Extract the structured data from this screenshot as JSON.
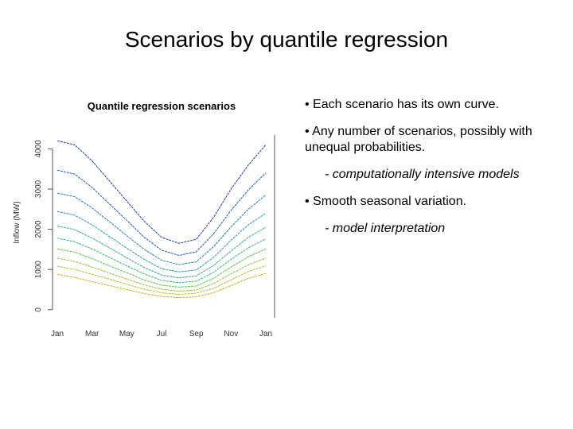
{
  "title": "Scenarios by quantile regression",
  "bullets": [
    {
      "text": "Each scenario has its own curve."
    },
    {
      "text": "Any number of scenarios, possibly with unequal probabilities.",
      "sub": "- computationally  intensive models"
    },
    {
      "text": "Smooth seasonal variation.",
      "sub": "- model interpretation"
    }
  ],
  "chart_data": {
    "type": "line",
    "title": "Quantile regression scenarios",
    "y_label": "Inflow (MW)",
    "categories": [
      "Jan",
      null,
      "Mar",
      null,
      "May",
      null,
      "Jul",
      null,
      "Sep",
      null,
      "Nov",
      null,
      "Jan"
    ],
    "ylim": [
      -300,
      4500
    ],
    "yticks": [
      0,
      1000,
      2000,
      3000,
      4000
    ],
    "grid": false,
    "series": [
      {
        "color": "#1f3a9c",
        "values": [
          4200,
          4100,
          3700,
          3200,
          2700,
          2200,
          1800,
          1650,
          1750,
          2300,
          3000,
          3600,
          4100
        ]
      },
      {
        "color": "#2657ad",
        "values": [
          3470,
          3370,
          3040,
          2630,
          2220,
          1800,
          1480,
          1350,
          1440,
          1890,
          2470,
          2980,
          3400
        ]
      },
      {
        "color": "#2c78b6",
        "values": [
          2900,
          2810,
          2530,
          2190,
          1840,
          1500,
          1230,
          1120,
          1190,
          1570,
          2060,
          2500,
          2850
        ]
      },
      {
        "color": "#2e95ac",
        "values": [
          2440,
          2350,
          2110,
          1820,
          1530,
          1250,
          1020,
          940,
          990,
          1300,
          1730,
          2110,
          2400
        ]
      },
      {
        "color": "#2fab8e",
        "values": [
          2080,
          1990,
          1780,
          1540,
          1290,
          1050,
          860,
          790,
          840,
          1100,
          1460,
          1800,
          2050
        ]
      },
      {
        "color": "#38b76e",
        "values": [
          1780,
          1690,
          1510,
          1300,
          1090,
          890,
          730,
          670,
          710,
          930,
          1250,
          1540,
          1760
        ]
      },
      {
        "color": "#5abe4c",
        "values": [
          1510,
          1430,
          1270,
          1090,
          920,
          740,
          610,
          560,
          590,
          780,
          1060,
          1320,
          1510
        ]
      },
      {
        "color": "#8cc13a",
        "values": [
          1280,
          1200,
          1060,
          910,
          760,
          620,
          510,
          460,
          490,
          650,
          890,
          1120,
          1280
        ]
      },
      {
        "color": "#b9bd30",
        "values": [
          1080,
          1000,
          880,
          760,
          630,
          510,
          420,
          380,
          410,
          530,
          740,
          950,
          1090
        ]
      },
      {
        "color": "#d2ac22",
        "values": [
          880,
          800,
          700,
          600,
          500,
          400,
          330,
          300,
          320,
          420,
          600,
          780,
          900
        ]
      }
    ]
  }
}
